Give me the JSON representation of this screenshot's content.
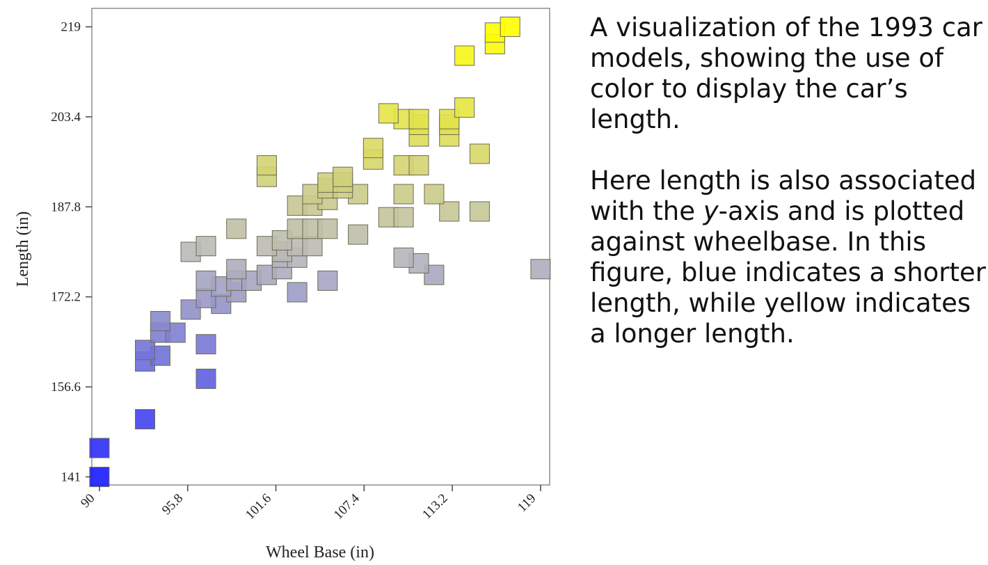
{
  "description": {
    "paragraph1": "A visualization of the 1993 car models, showing the use of color to display the car’s length.",
    "paragraph2_before": "Here length is also associated with the ",
    "paragraph2_italic": "y",
    "paragraph2_after": "-axis and is plotted against wheelbase. In this figure, blue indicates a shorter length, while yellow indicates a longer length."
  },
  "chart_data": {
    "type": "scatter",
    "title": "",
    "xlabel": "Wheel Base (in)",
    "ylabel": "Length (in)",
    "xlim": [
      89.5,
      119.6
    ],
    "ylim": [
      139.6,
      222.2
    ],
    "xticks": [
      90,
      95.8,
      101.6,
      107.4,
      113.2,
      119
    ],
    "xtick_labels": [
      "90",
      "95.8",
      "101.6",
      "107.4",
      "113.2",
      "119"
    ],
    "yticks": [
      141,
      156.6,
      172.2,
      187.8,
      203.4,
      219
    ],
    "ytick_labels": [
      "141",
      "156.6",
      "172.2",
      "187.8",
      "203.4",
      "219"
    ],
    "grid": false,
    "legend": "none",
    "marker": "square",
    "color_encodes": "Length (in)",
    "color_min": "#1a1aff",
    "color_mid": "#b9b9b9",
    "color_max": "#ffff00",
    "points": [
      {
        "x": 90,
        "y": 141
      },
      {
        "x": 90,
        "y": 146
      },
      {
        "x": 93,
        "y": 151
      },
      {
        "x": 93,
        "y": 161
      },
      {
        "x": 93,
        "y": 163
      },
      {
        "x": 94,
        "y": 162
      },
      {
        "x": 94,
        "y": 166
      },
      {
        "x": 94,
        "y": 168
      },
      {
        "x": 95,
        "y": 166
      },
      {
        "x": 96,
        "y": 170
      },
      {
        "x": 97,
        "y": 158
      },
      {
        "x": 97,
        "y": 164
      },
      {
        "x": 97,
        "y": 172
      },
      {
        "x": 97,
        "y": 175
      },
      {
        "x": 96,
        "y": 180
      },
      {
        "x": 97,
        "y": 181
      },
      {
        "x": 98,
        "y": 171
      },
      {
        "x": 98,
        "y": 174
      },
      {
        "x": 99,
        "y": 173
      },
      {
        "x": 99,
        "y": 175
      },
      {
        "x": 99,
        "y": 177
      },
      {
        "x": 99,
        "y": 184
      },
      {
        "x": 100,
        "y": 175
      },
      {
        "x": 101,
        "y": 176
      },
      {
        "x": 101,
        "y": 193
      },
      {
        "x": 101,
        "y": 195
      },
      {
        "x": 101,
        "y": 181
      },
      {
        "x": 102,
        "y": 177
      },
      {
        "x": 102,
        "y": 179
      },
      {
        "x": 102,
        "y": 180
      },
      {
        "x": 102,
        "y": 182
      },
      {
        "x": 103,
        "y": 173
      },
      {
        "x": 103,
        "y": 179
      },
      {
        "x": 103,
        "y": 181
      },
      {
        "x": 103,
        "y": 184
      },
      {
        "x": 103,
        "y": 188
      },
      {
        "x": 104,
        "y": 181
      },
      {
        "x": 104,
        "y": 184
      },
      {
        "x": 104,
        "y": 188
      },
      {
        "x": 104,
        "y": 190
      },
      {
        "x": 105,
        "y": 175
      },
      {
        "x": 105,
        "y": 184
      },
      {
        "x": 105,
        "y": 189
      },
      {
        "x": 105,
        "y": 191
      },
      {
        "x": 105,
        "y": 192
      },
      {
        "x": 106,
        "y": 192
      },
      {
        "x": 106,
        "y": 193
      },
      {
        "x": 106,
        "y": 191
      },
      {
        "x": 107,
        "y": 190
      },
      {
        "x": 107,
        "y": 183
      },
      {
        "x": 108,
        "y": 196
      },
      {
        "x": 108,
        "y": 198
      },
      {
        "x": 109,
        "y": 186
      },
      {
        "x": 109,
        "y": 204
      },
      {
        "x": 110,
        "y": 179
      },
      {
        "x": 110,
        "y": 186
      },
      {
        "x": 110,
        "y": 190
      },
      {
        "x": 110,
        "y": 195
      },
      {
        "x": 110,
        "y": 203
      },
      {
        "x": 111,
        "y": 195
      },
      {
        "x": 111,
        "y": 178
      },
      {
        "x": 111,
        "y": 200
      },
      {
        "x": 111,
        "y": 202
      },
      {
        "x": 111,
        "y": 203
      },
      {
        "x": 112,
        "y": 190
      },
      {
        "x": 112,
        "y": 176
      },
      {
        "x": 113,
        "y": 187
      },
      {
        "x": 113,
        "y": 200
      },
      {
        "x": 113,
        "y": 202
      },
      {
        "x": 113,
        "y": 203
      },
      {
        "x": 114,
        "y": 205
      },
      {
        "x": 114,
        "y": 214
      },
      {
        "x": 115,
        "y": 187
      },
      {
        "x": 115,
        "y": 197
      },
      {
        "x": 116,
        "y": 216
      },
      {
        "x": 116,
        "y": 218
      },
      {
        "x": 117,
        "y": 219
      },
      {
        "x": 119,
        "y": 177
      }
    ]
  }
}
